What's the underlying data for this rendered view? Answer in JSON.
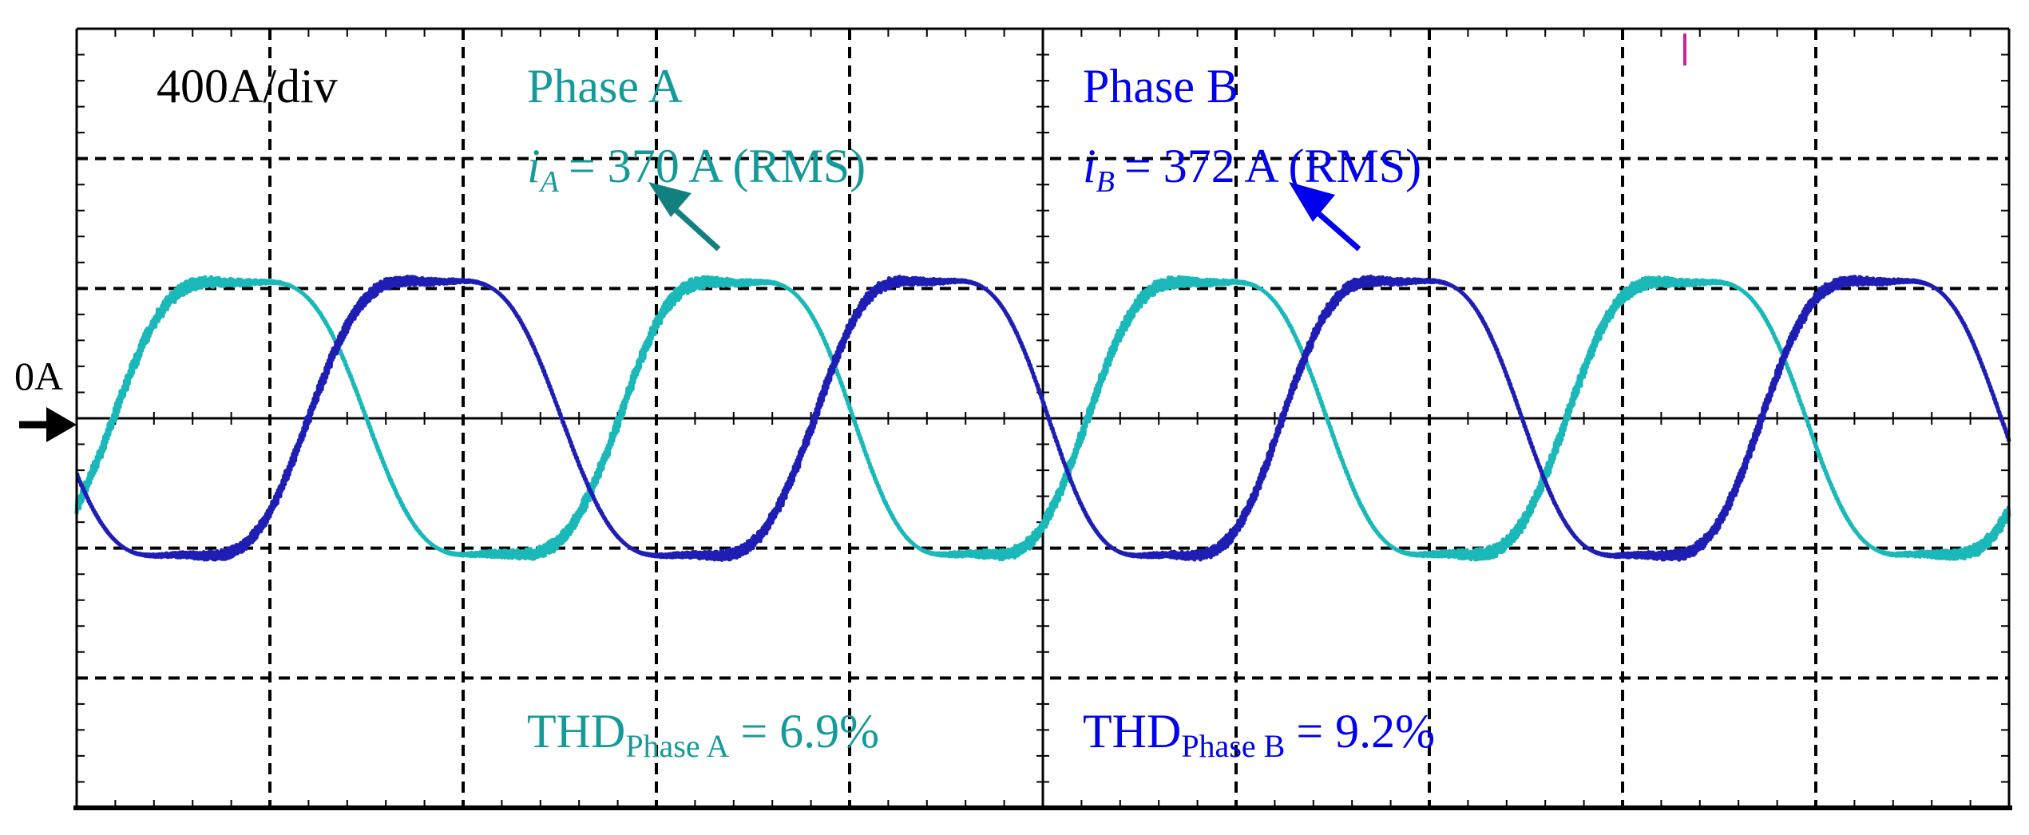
{
  "chart_data": {
    "type": "line",
    "title": "",
    "xlabel": "",
    "ylabel": "",
    "scale_label": "400A/div",
    "zero_label": "0A",
    "x_unit": "div",
    "y_unit": "div",
    "xlim": [
      0,
      10
    ],
    "ylim": [
      -3,
      3
    ],
    "grid": true,
    "legend": "top",
    "series": [
      {
        "name": "Phase A",
        "key": "A",
        "color": "#1ab8b8",
        "label_color": "#159a9a",
        "current_symbol": "i",
        "current_subscript": "A",
        "rms_value_text": "= 370 A (RMS)",
        "rms_amps": 370,
        "thd_main": "THD",
        "thd_sub": "Phase A",
        "thd_value_text": "= 6.9%",
        "thd_percent": 6.9,
        "amplitude_div": 1.32,
        "periods": [
          2.62,
          2.42,
          2.48,
          2.48
        ],
        "zero_cross_up_div": 0.19
      },
      {
        "name": "Phase B",
        "key": "B",
        "color": "#1e1eb4",
        "label_color": "#0000ee",
        "current_symbol": "i",
        "current_subscript": "B",
        "rms_value_text": "= 372 A (RMS)",
        "rms_amps": 372,
        "thd_main": "THD",
        "thd_sub": "Phase B",
        "thd_value_text": "= 9.2%",
        "thd_percent": 9.2,
        "amplitude_div": 1.33,
        "periods": [
          2.62,
          2.42,
          2.48,
          2.48
        ],
        "zero_cross_up_div": 1.2
      }
    ]
  }
}
